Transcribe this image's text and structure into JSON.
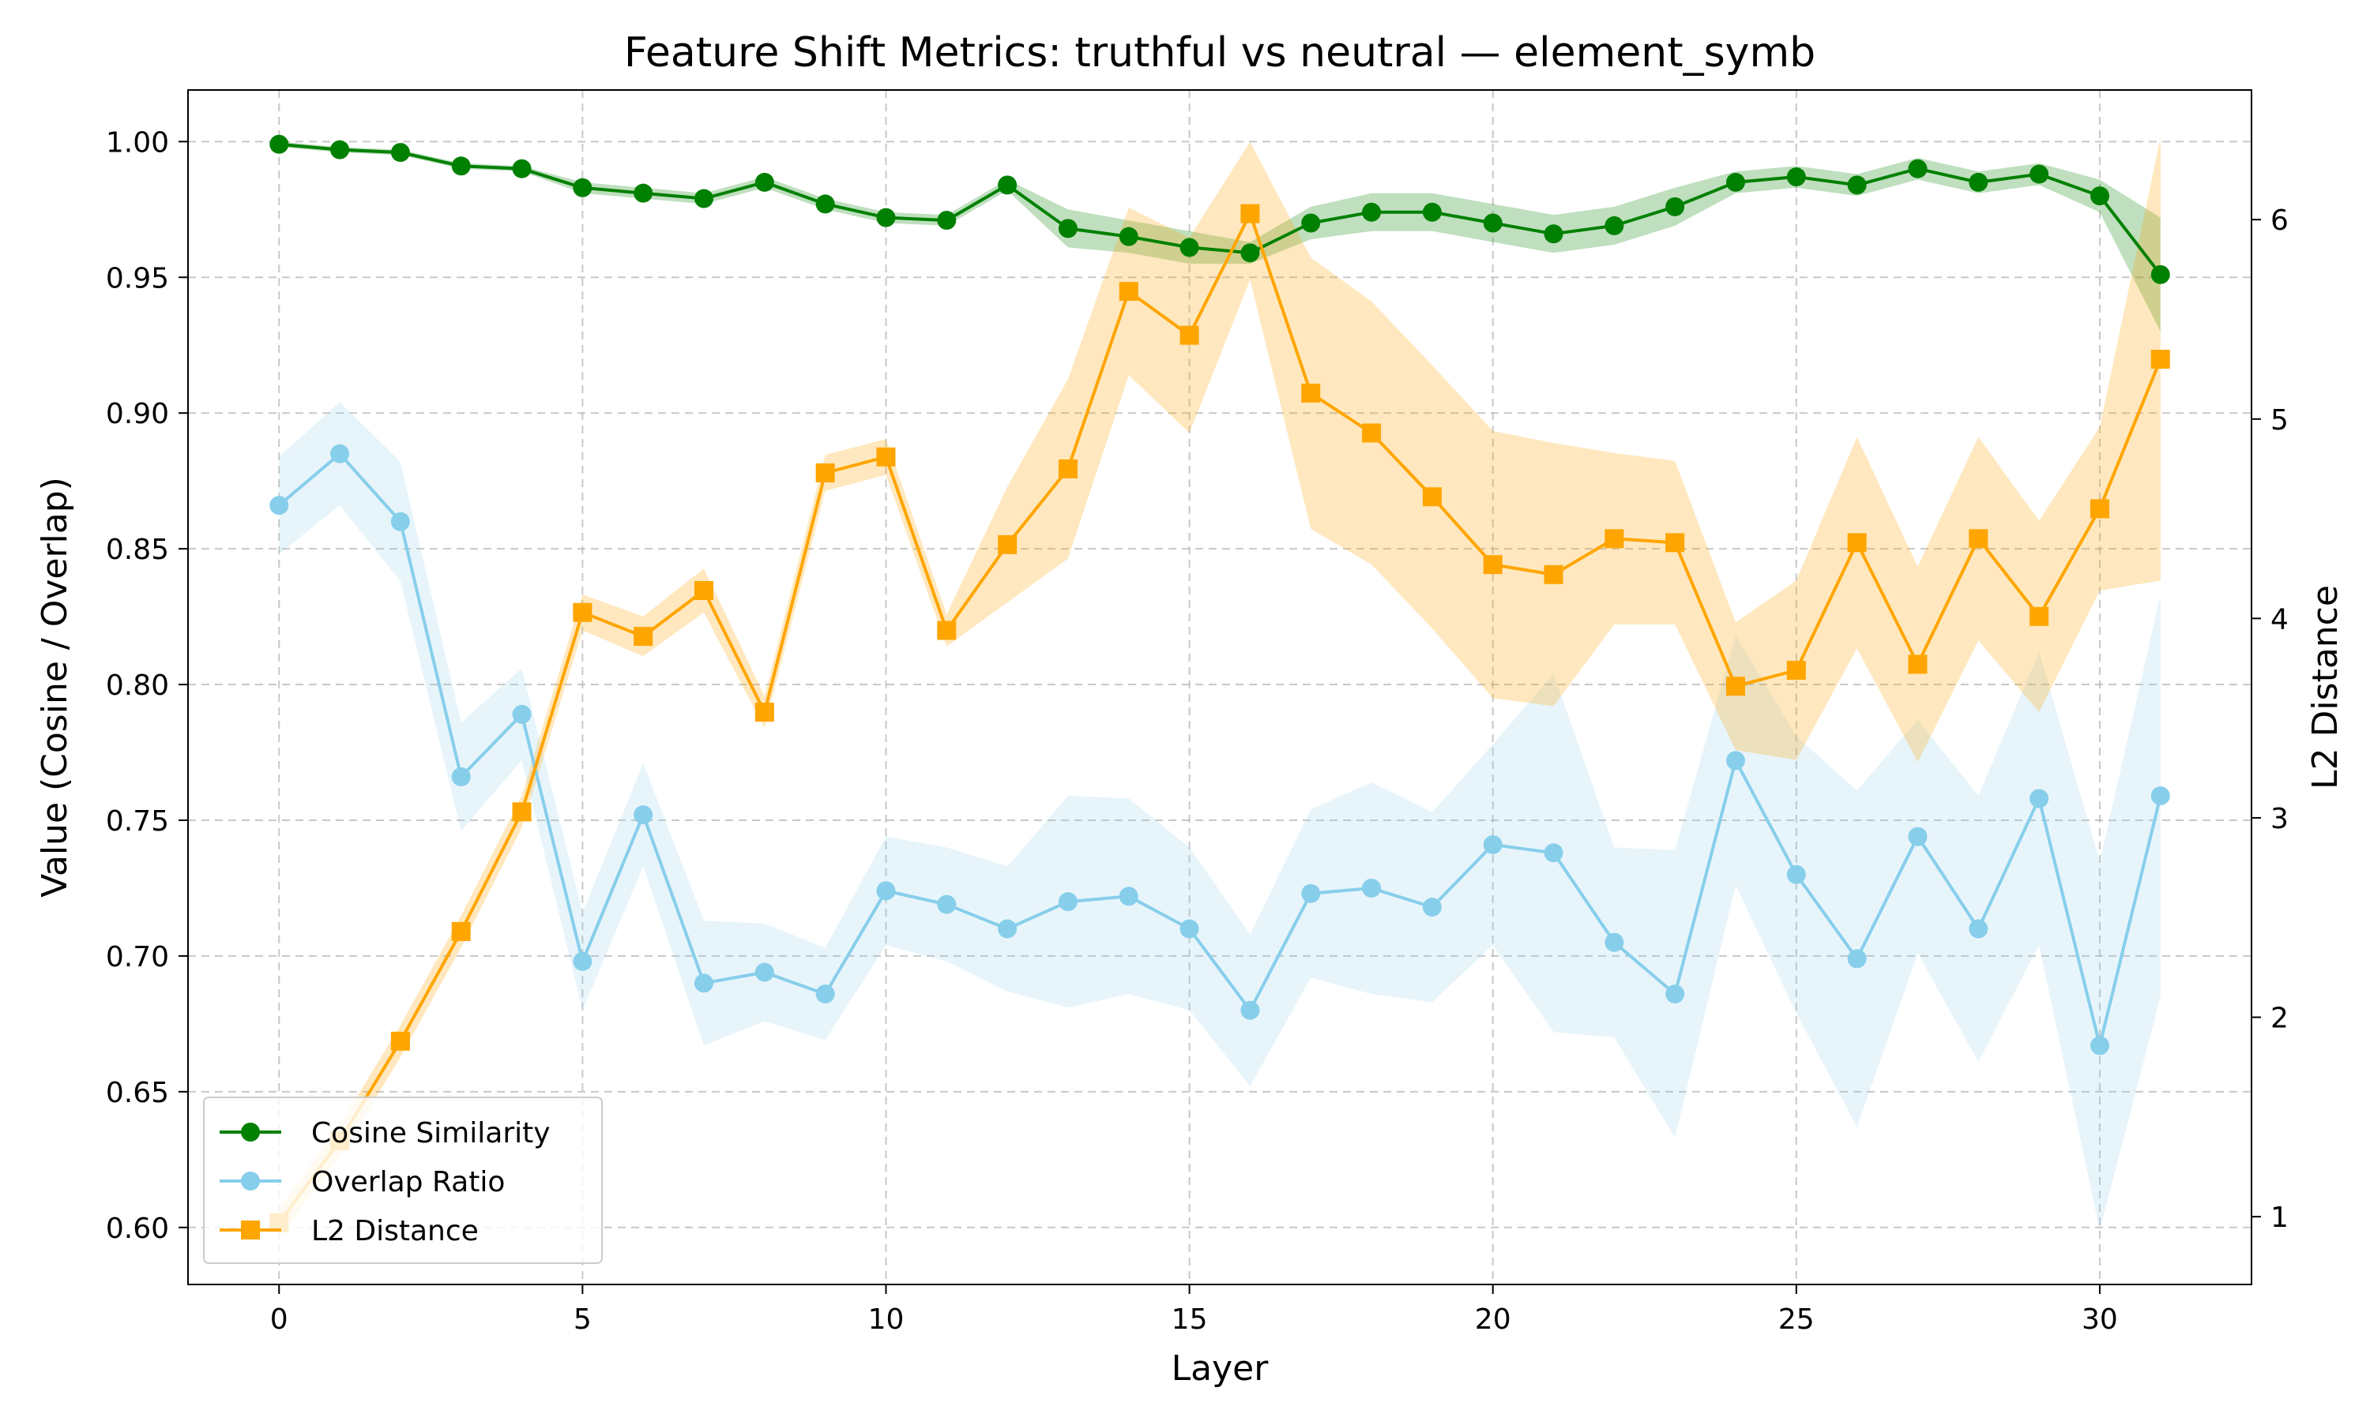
{
  "chart_data": {
    "type": "line",
    "title": "Feature Shift Metrics: truthful vs neutral — element_symb",
    "xlabel": "Layer",
    "ylabel": "Value (Cosine / Overlap)",
    "y2label": "L2 Distance",
    "xlim": [
      -1.5,
      32.5
    ],
    "ylim": [
      0.579,
      1.019
    ],
    "y2lim": [
      0.66,
      6.65
    ],
    "xticks": [
      "0",
      "5",
      "10",
      "15",
      "20",
      "25",
      "30"
    ],
    "yticks": [
      "0.60",
      "0.65",
      "0.70",
      "0.75",
      "0.80",
      "0.85",
      "0.90",
      "0.95",
      "1.00"
    ],
    "y2ticks": [
      "1",
      "2",
      "3",
      "4",
      "5",
      "6"
    ],
    "grid": true,
    "legend_position": "lower-left",
    "x": [
      0,
      1,
      2,
      3,
      4,
      5,
      6,
      7,
      8,
      9,
      10,
      11,
      12,
      13,
      14,
      15,
      16,
      17,
      18,
      19,
      20,
      21,
      22,
      23,
      24,
      25,
      26,
      27,
      28,
      29,
      30,
      31
    ],
    "series": [
      {
        "name": "Cosine Similarity",
        "axis": "left",
        "color": "#008000",
        "marker": "circle",
        "values": [
          0.999,
          0.997,
          0.996,
          0.991,
          0.99,
          0.983,
          0.981,
          0.979,
          0.985,
          0.977,
          0.972,
          0.971,
          0.984,
          0.968,
          0.965,
          0.961,
          0.959,
          0.97,
          0.974,
          0.974,
          0.97,
          0.966,
          0.969,
          0.976,
          0.985,
          0.987,
          0.984,
          0.99,
          0.985,
          0.988,
          0.98,
          0.951
        ],
        "lower": [
          0.998,
          0.996,
          0.995,
          0.99,
          0.989,
          0.981,
          0.979,
          0.977,
          0.983,
          0.975,
          0.97,
          0.969,
          0.982,
          0.961,
          0.959,
          0.955,
          0.955,
          0.964,
          0.967,
          0.967,
          0.963,
          0.959,
          0.962,
          0.969,
          0.981,
          0.983,
          0.98,
          0.986,
          0.981,
          0.984,
          0.974,
          0.93
        ],
        "upper": [
          1.0,
          0.998,
          0.997,
          0.992,
          0.991,
          0.985,
          0.983,
          0.981,
          0.987,
          0.979,
          0.974,
          0.973,
          0.986,
          0.975,
          0.971,
          0.967,
          0.963,
          0.976,
          0.981,
          0.981,
          0.977,
          0.973,
          0.976,
          0.983,
          0.989,
          0.991,
          0.988,
          0.994,
          0.989,
          0.992,
          0.986,
          0.972
        ]
      },
      {
        "name": "Overlap Ratio",
        "axis": "left",
        "color": "#87CEEB",
        "marker": "circle",
        "values": [
          0.866,
          0.885,
          0.86,
          0.766,
          0.789,
          0.698,
          0.752,
          0.69,
          0.694,
          0.686,
          0.724,
          0.719,
          0.71,
          0.72,
          0.722,
          0.71,
          0.68,
          0.723,
          0.725,
          0.718,
          0.741,
          0.738,
          0.705,
          0.686,
          0.772,
          0.73,
          0.699,
          0.744,
          0.71,
          0.758,
          0.667,
          0.759
        ],
        "lower": [
          0.848,
          0.866,
          0.838,
          0.746,
          0.772,
          0.68,
          0.733,
          0.667,
          0.676,
          0.669,
          0.704,
          0.698,
          0.687,
          0.681,
          0.686,
          0.68,
          0.652,
          0.692,
          0.686,
          0.683,
          0.704,
          0.672,
          0.67,
          0.633,
          0.726,
          0.679,
          0.637,
          0.701,
          0.661,
          0.704,
          0.599,
          0.685
        ],
        "upper": [
          0.884,
          0.904,
          0.882,
          0.786,
          0.806,
          0.716,
          0.771,
          0.713,
          0.712,
          0.703,
          0.744,
          0.74,
          0.733,
          0.759,
          0.758,
          0.74,
          0.708,
          0.754,
          0.764,
          0.753,
          0.778,
          0.804,
          0.74,
          0.739,
          0.818,
          0.781,
          0.761,
          0.787,
          0.759,
          0.812,
          0.735,
          0.833
        ]
      },
      {
        "name": "L2 Distance",
        "axis": "right",
        "color": "#FFA500",
        "marker": "square",
        "values": [
          0.97,
          1.38,
          1.88,
          2.43,
          3.03,
          4.03,
          3.91,
          4.14,
          3.53,
          4.73,
          4.81,
          3.94,
          4.37,
          4.75,
          5.64,
          5.42,
          6.03,
          5.13,
          4.93,
          4.61,
          4.27,
          4.22,
          4.4,
          4.38,
          3.66,
          3.74,
          4.38,
          3.77,
          4.4,
          4.01,
          4.55,
          5.3
        ],
        "lower": [
          0.9,
          1.3,
          1.8,
          2.35,
          2.95,
          3.94,
          3.81,
          4.03,
          3.45,
          4.64,
          4.72,
          3.86,
          4.08,
          4.3,
          5.22,
          4.93,
          5.7,
          4.45,
          4.27,
          3.95,
          3.6,
          3.56,
          3.97,
          3.97,
          3.34,
          3.29,
          3.85,
          3.28,
          3.89,
          3.53,
          4.14,
          4.19
        ],
        "upper": [
          1.04,
          1.46,
          1.96,
          2.51,
          3.11,
          4.12,
          4.01,
          4.25,
          3.61,
          4.82,
          4.9,
          4.02,
          4.66,
          5.2,
          6.06,
          5.91,
          6.39,
          5.81,
          5.59,
          5.27,
          4.94,
          4.88,
          4.83,
          4.79,
          3.98,
          4.19,
          4.91,
          4.26,
          4.91,
          4.49,
          4.96,
          6.41
        ]
      }
    ]
  }
}
